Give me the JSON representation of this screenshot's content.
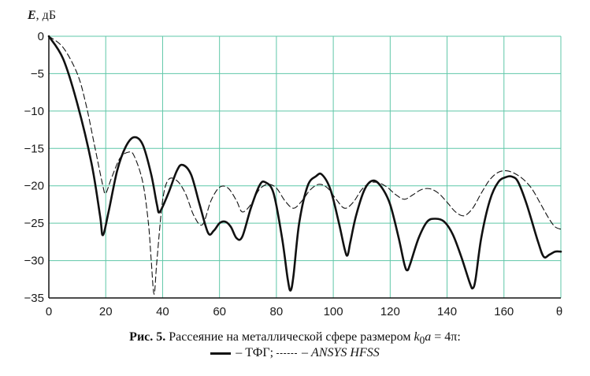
{
  "chart_data": {
    "type": "line",
    "ylabel_var": "E",
    "ylabel_unit": ", дБ",
    "xlabel": "θ",
    "xlim": [
      0,
      180
    ],
    "ylim": [
      -35,
      0
    ],
    "x_ticks": [
      0,
      20,
      40,
      60,
      80,
      100,
      120,
      140,
      160
    ],
    "x_tick_labels": [
      "0",
      "20",
      "40",
      "60",
      "80",
      "100",
      "120",
      "140",
      "160"
    ],
    "y_ticks": [
      0,
      -5,
      -10,
      -15,
      -20,
      -25,
      -30,
      -35
    ],
    "y_tick_labels": [
      "0",
      "−5",
      "−10",
      "−15",
      "−20",
      "−25",
      "−30",
      "−35"
    ],
    "grid": true,
    "grid_color": "#5fc7a8",
    "series": [
      {
        "name": "ТФГ",
        "style": "solid",
        "x": [
          0,
          5,
          10,
          15,
          18,
          19,
          21,
          24,
          27,
          30,
          33,
          36,
          38,
          39,
          42,
          45,
          47,
          50,
          53,
          56,
          58,
          60,
          62,
          64,
          66,
          68,
          71,
          74,
          76,
          79,
          82,
          84,
          85,
          86,
          88,
          91,
          94,
          96,
          99,
          102,
          104,
          105,
          106,
          108,
          111,
          114,
          117,
          120,
          123,
          125,
          126,
          127,
          130,
          133,
          136,
          139,
          142,
          145,
          148,
          149,
          150,
          152,
          155,
          158,
          161,
          163,
          165,
          168,
          172,
          174,
          176,
          178,
          180
        ],
        "y": [
          0,
          -3,
          -9,
          -17,
          -24,
          -26.6,
          -23.5,
          -18,
          -14.8,
          -13.5,
          -14.5,
          -18.5,
          -22.5,
          -23.5,
          -21,
          -18,
          -17.2,
          -18.5,
          -22.5,
          -26.3,
          -26,
          -25,
          -24.8,
          -25.5,
          -27,
          -26.8,
          -23,
          -20,
          -19.5,
          -21,
          -27,
          -32.5,
          -34,
          -32,
          -25,
          -20,
          -18.7,
          -18.5,
          -20.5,
          -25,
          -28.5,
          -29.3,
          -27.5,
          -24,
          -20.5,
          -19.3,
          -20.2,
          -22.5,
          -27,
          -30.5,
          -31.3,
          -30.5,
          -27,
          -24.8,
          -24.4,
          -24.8,
          -26.5,
          -29.5,
          -33,
          -33.7,
          -32.5,
          -27,
          -22,
          -19.5,
          -18.8,
          -18.8,
          -19.5,
          -22.5,
          -27.5,
          -29.5,
          -29.2,
          -28.8,
          -28.8
        ]
      },
      {
        "name": "ANSYS HFSS",
        "style": "dashed",
        "x": [
          0,
          5,
          10,
          13,
          16,
          19,
          20,
          22,
          25,
          28,
          30,
          33,
          35,
          36,
          37,
          38,
          40,
          42,
          45,
          48,
          51,
          54,
          57,
          60,
          63,
          66,
          68,
          71,
          74,
          77,
          80,
          83,
          86,
          89,
          92,
          95,
          98,
          101,
          104,
          107,
          110,
          113,
          116,
          119,
          122,
          125,
          128,
          131,
          134,
          137,
          140,
          143,
          146,
          149,
          152,
          155,
          158,
          161,
          164,
          167,
          170,
          173,
          176,
          178,
          180
        ],
        "y": [
          0,
          -1.5,
          -5,
          -9,
          -14.5,
          -20,
          -21,
          -19,
          -16.3,
          -15.5,
          -16,
          -19.5,
          -25,
          -30,
          -34.5,
          -30,
          -22,
          -19.2,
          -19.3,
          -21,
          -24,
          -25.2,
          -22,
          -20.2,
          -20.3,
          -22,
          -23.5,
          -22.5,
          -20.5,
          -19.8,
          -20.3,
          -22,
          -23,
          -22,
          -20.5,
          -19.8,
          -20.3,
          -21.8,
          -23,
          -22.2,
          -20.5,
          -19.6,
          -19.6,
          -20.2,
          -21.2,
          -21.8,
          -21.2,
          -20.5,
          -20.4,
          -21,
          -22.2,
          -23.5,
          -24,
          -23,
          -21,
          -19.2,
          -18.2,
          -18,
          -18.4,
          -19.2,
          -20.5,
          -22.5,
          -24.5,
          -25.5,
          -25.8
        ]
      }
    ]
  },
  "caption": {
    "fig_label": "Рис. 5.",
    "text": " Рассеяние на металлической сфере размером ",
    "k": "k",
    "k_sub": "0",
    "a": "a",
    "formula_rest": " = 4π:",
    "legend_solid": "– ТФГ;",
    "legend_dashed": "– ANSYS HFSS"
  }
}
